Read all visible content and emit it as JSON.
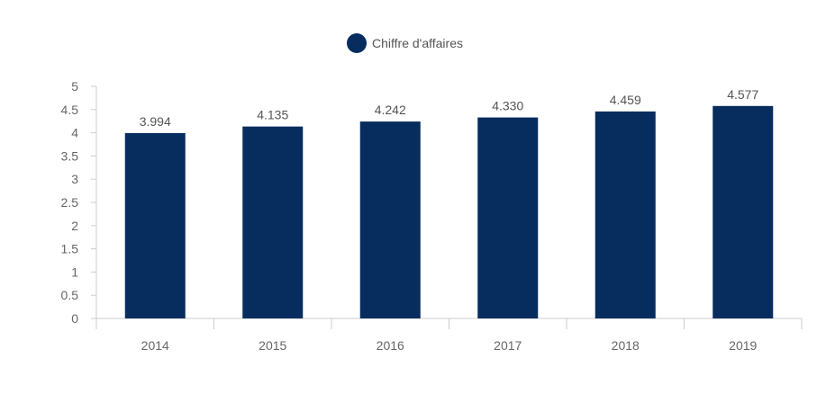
{
  "legend": {
    "label": "Chiffre d'affaires"
  },
  "chart_data": {
    "type": "bar",
    "categories": [
      "2014",
      "2015",
      "2016",
      "2017",
      "2018",
      "2019"
    ],
    "series": [
      {
        "name": "Chiffre d'affaires",
        "values": [
          3.994,
          4.135,
          4.242,
          4.33,
          4.459,
          4.577
        ],
        "labels": [
          "3.994",
          "4.135",
          "4.242",
          "4.330",
          "4.459",
          "4.577"
        ],
        "color": "#062d5e"
      }
    ],
    "ylim": [
      0,
      5
    ],
    "yticks": [
      "0",
      "0.5",
      "1",
      "1.5",
      "2",
      "2.5",
      "3",
      "3.5",
      "4",
      "4.5",
      "5"
    ],
    "legend_position": "top-center",
    "grid": false,
    "axis_color": "#cccccc"
  }
}
